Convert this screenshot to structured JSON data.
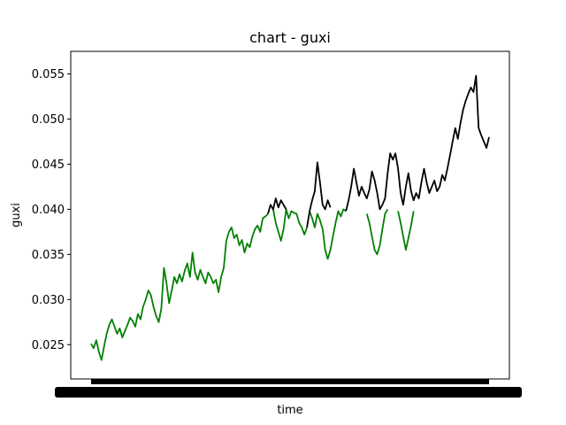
{
  "chart_data": {
    "type": "line",
    "title": "chart - guxi",
    "xlabel": "time",
    "ylabel": "guxi",
    "ylim": [
      0.0212,
      0.0575
    ],
    "yticks": [
      "0.025",
      "0.030",
      "0.035",
      "0.040",
      "0.045",
      "0.050",
      "0.055"
    ],
    "x_tick_note": "dense overlapping date ticks (unreadable)",
    "grid": false,
    "legend": "none",
    "series": [
      {
        "color": "#008000",
        "values": [
          [
            0,
            0.0251
          ],
          [
            3,
            0.0246
          ],
          [
            6,
            0.0255
          ],
          [
            9,
            0.0242
          ],
          [
            12,
            0.0233
          ],
          [
            15,
            0.0248
          ],
          [
            18,
            0.0262
          ],
          [
            21,
            0.0272
          ],
          [
            24,
            0.0278
          ],
          [
            27,
            0.027
          ],
          [
            30,
            0.0262
          ],
          [
            33,
            0.0268
          ],
          [
            36,
            0.0258
          ],
          [
            39,
            0.0265
          ],
          [
            42,
            0.0272
          ],
          [
            45,
            0.028
          ],
          [
            48,
            0.0276
          ],
          [
            51,
            0.027
          ],
          [
            54,
            0.0284
          ],
          [
            57,
            0.0278
          ],
          [
            60,
            0.0292
          ],
          [
            63,
            0.03
          ],
          [
            66,
            0.031
          ],
          [
            69,
            0.0305
          ],
          [
            72,
            0.0292
          ],
          [
            75,
            0.0282
          ],
          [
            78,
            0.0275
          ],
          [
            81,
            0.029
          ],
          [
            84,
            0.0335
          ],
          [
            87,
            0.0318
          ],
          [
            90,
            0.0296
          ],
          [
            93,
            0.031
          ],
          [
            96,
            0.0325
          ],
          [
            99,
            0.0318
          ],
          [
            102,
            0.0328
          ],
          [
            105,
            0.032
          ],
          [
            108,
            0.0332
          ],
          [
            111,
            0.034
          ],
          [
            114,
            0.0325
          ],
          [
            117,
            0.0352
          ],
          [
            120,
            0.033
          ],
          [
            123,
            0.0322
          ],
          [
            126,
            0.0333
          ],
          [
            129,
            0.0325
          ],
          [
            132,
            0.0318
          ],
          [
            135,
            0.033
          ],
          [
            138,
            0.0325
          ],
          [
            141,
            0.0318
          ],
          [
            144,
            0.0322
          ],
          [
            147,
            0.0308
          ],
          [
            150,
            0.0325
          ],
          [
            153,
            0.0335
          ],
          [
            156,
            0.0365
          ],
          [
            159,
            0.0375
          ],
          [
            162,
            0.038
          ],
          [
            165,
            0.0368
          ],
          [
            168,
            0.0372
          ],
          [
            171,
            0.036
          ],
          [
            174,
            0.0366
          ],
          [
            177,
            0.0352
          ],
          [
            180,
            0.0362
          ],
          [
            183,
            0.0358
          ],
          [
            186,
            0.037
          ],
          [
            189,
            0.0378
          ],
          [
            192,
            0.0382
          ],
          [
            195,
            0.0375
          ],
          [
            198,
            0.039
          ],
          [
            201,
            0.0392
          ],
          [
            204,
            0.0395
          ]
        ]
      },
      {
        "color": "#008000",
        "values": [
          [
            210,
            0.04
          ],
          [
            213,
            0.0385
          ],
          [
            216,
            0.0375
          ],
          [
            219,
            0.0365
          ],
          [
            222,
            0.0378
          ],
          [
            225,
            0.04
          ],
          [
            228,
            0.039
          ],
          [
            231,
            0.0398
          ],
          [
            234,
            0.0396
          ],
          [
            237,
            0.0395
          ],
          [
            240,
            0.0385
          ],
          [
            243,
            0.038
          ],
          [
            246,
            0.0372
          ],
          [
            249,
            0.038
          ]
        ]
      },
      {
        "color": "#008000",
        "values": [
          [
            252,
            0.0398
          ],
          [
            255,
            0.039
          ],
          [
            258,
            0.038
          ],
          [
            261,
            0.0395
          ],
          [
            264,
            0.0388
          ],
          [
            267,
            0.0378
          ],
          [
            270,
            0.0355
          ],
          [
            273,
            0.0345
          ],
          [
            276,
            0.0355
          ],
          [
            279,
            0.037
          ],
          [
            282,
            0.0385
          ],
          [
            285,
            0.0398
          ],
          [
            288,
            0.0392
          ],
          [
            291,
            0.04
          ],
          [
            294,
            0.0398
          ]
        ]
      },
      {
        "color": "#008000",
        "values": [
          [
            318,
            0.0395
          ],
          [
            321,
            0.0385
          ],
          [
            324,
            0.037
          ],
          [
            327,
            0.0355
          ],
          [
            330,
            0.035
          ],
          [
            333,
            0.036
          ],
          [
            336,
            0.0378
          ],
          [
            339,
            0.0395
          ],
          [
            342,
            0.04
          ]
        ]
      },
      {
        "color": "#008000",
        "values": [
          [
            354,
            0.0398
          ],
          [
            357,
            0.0385
          ],
          [
            360,
            0.037
          ],
          [
            363,
            0.0355
          ],
          [
            366,
            0.0368
          ],
          [
            369,
            0.0382
          ],
          [
            372,
            0.0398
          ]
        ]
      },
      {
        "color": "#000000",
        "values": [
          [
            204,
            0.0395
          ],
          [
            207,
            0.0405
          ],
          [
            210,
            0.04
          ],
          [
            213,
            0.0412
          ],
          [
            216,
            0.0402
          ],
          [
            219,
            0.041
          ],
          [
            222,
            0.0405
          ],
          [
            225,
            0.04
          ]
        ]
      },
      {
        "color": "#000000",
        "values": [
          [
            249,
            0.038
          ],
          [
            252,
            0.0398
          ],
          [
            255,
            0.041
          ],
          [
            258,
            0.042
          ],
          [
            261,
            0.0452
          ],
          [
            264,
            0.043
          ],
          [
            267,
            0.0405
          ],
          [
            270,
            0.04
          ],
          [
            273,
            0.041
          ],
          [
            276,
            0.0402
          ]
        ]
      },
      {
        "color": "#000000",
        "values": [
          [
            294,
            0.0398
          ],
          [
            297,
            0.041
          ],
          [
            300,
            0.0425
          ],
          [
            303,
            0.0445
          ],
          [
            306,
            0.043
          ],
          [
            309,
            0.0415
          ],
          [
            312,
            0.0425
          ],
          [
            315,
            0.0418
          ],
          [
            318,
            0.0412
          ],
          [
            321,
            0.0422
          ],
          [
            324,
            0.0442
          ],
          [
            327,
            0.0432
          ],
          [
            330,
            0.0418
          ],
          [
            333,
            0.04
          ],
          [
            336,
            0.0405
          ],
          [
            339,
            0.0412
          ],
          [
            342,
            0.044
          ],
          [
            345,
            0.0462
          ],
          [
            348,
            0.0455
          ],
          [
            351,
            0.0462
          ],
          [
            354,
            0.0445
          ],
          [
            357,
            0.0418
          ],
          [
            360,
            0.0405
          ],
          [
            363,
            0.0425
          ],
          [
            366,
            0.044
          ],
          [
            369,
            0.042
          ],
          [
            372,
            0.041
          ],
          [
            375,
            0.0418
          ],
          [
            378,
            0.0412
          ],
          [
            381,
            0.043
          ],
          [
            384,
            0.0445
          ],
          [
            387,
            0.043
          ],
          [
            390,
            0.0418
          ],
          [
            393,
            0.0425
          ],
          [
            396,
            0.0432
          ],
          [
            399,
            0.042
          ],
          [
            402,
            0.0425
          ],
          [
            405,
            0.0438
          ],
          [
            408,
            0.0432
          ],
          [
            411,
            0.0445
          ],
          [
            414,
            0.046
          ],
          [
            417,
            0.0475
          ],
          [
            420,
            0.049
          ],
          [
            423,
            0.0478
          ],
          [
            426,
            0.0495
          ],
          [
            429,
            0.051
          ],
          [
            432,
            0.052
          ],
          [
            435,
            0.0528
          ],
          [
            438,
            0.0535
          ],
          [
            441,
            0.053
          ],
          [
            444,
            0.0548
          ],
          [
            447,
            0.049
          ],
          [
            450,
            0.0482
          ],
          [
            453,
            0.0475
          ],
          [
            456,
            0.0468
          ],
          [
            459,
            0.048
          ]
        ]
      }
    ]
  }
}
